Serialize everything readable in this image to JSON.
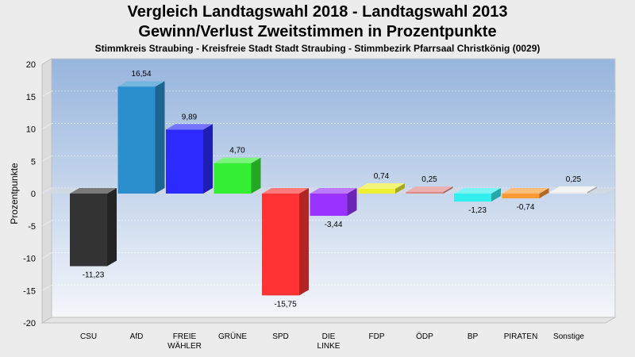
{
  "title_line1": "Vergleich Landtagswahl 2018 - Landtagswahl 2013",
  "title_line2": "Gewinn/Verlust Zweitstimmen in Prozentpunkte",
  "subtitle": "Stimmkreis Straubing - Kreisfreie Stadt Stadt Straubing - Stimmbezirk Pfarrsaal Christkönig (0029)",
  "chart_data": {
    "type": "bar",
    "ylabel": "Prozentpunkte",
    "xlabel": "",
    "ylim": [
      -20,
      20
    ],
    "yticks": [
      20,
      15,
      10,
      5,
      0,
      -5,
      -10,
      -15,
      -20
    ],
    "grid": true,
    "categories": [
      [
        "CSU"
      ],
      [
        "AfD"
      ],
      [
        "FREIE",
        "WÄHLER"
      ],
      [
        "GRÜNE"
      ],
      [
        "SPD"
      ],
      [
        "DIE",
        "LINKE"
      ],
      [
        "FDP"
      ],
      [
        "ÖDP"
      ],
      [
        "BP"
      ],
      [
        "PIRATEN"
      ],
      [
        "Sonstige"
      ]
    ],
    "values": [
      -11.23,
      16.54,
      9.89,
      4.7,
      -15.75,
      -3.44,
      0.74,
      0.25,
      -1.23,
      -0.74,
      0.25
    ],
    "value_labels": [
      "-11,23",
      "16,54",
      "9,89",
      "4,70",
      "-15,75",
      "-3,44",
      "0,74",
      "0,25",
      "-1,23",
      "-0,74",
      "0,25"
    ],
    "colors": [
      "#333333",
      "#2b8fce",
      "#2b2bff",
      "#33ee33",
      "#ff3333",
      "#9933ff",
      "#eeee33",
      "#e08888",
      "#33eeee",
      "#ff9933",
      "#eeeeee"
    ]
  }
}
